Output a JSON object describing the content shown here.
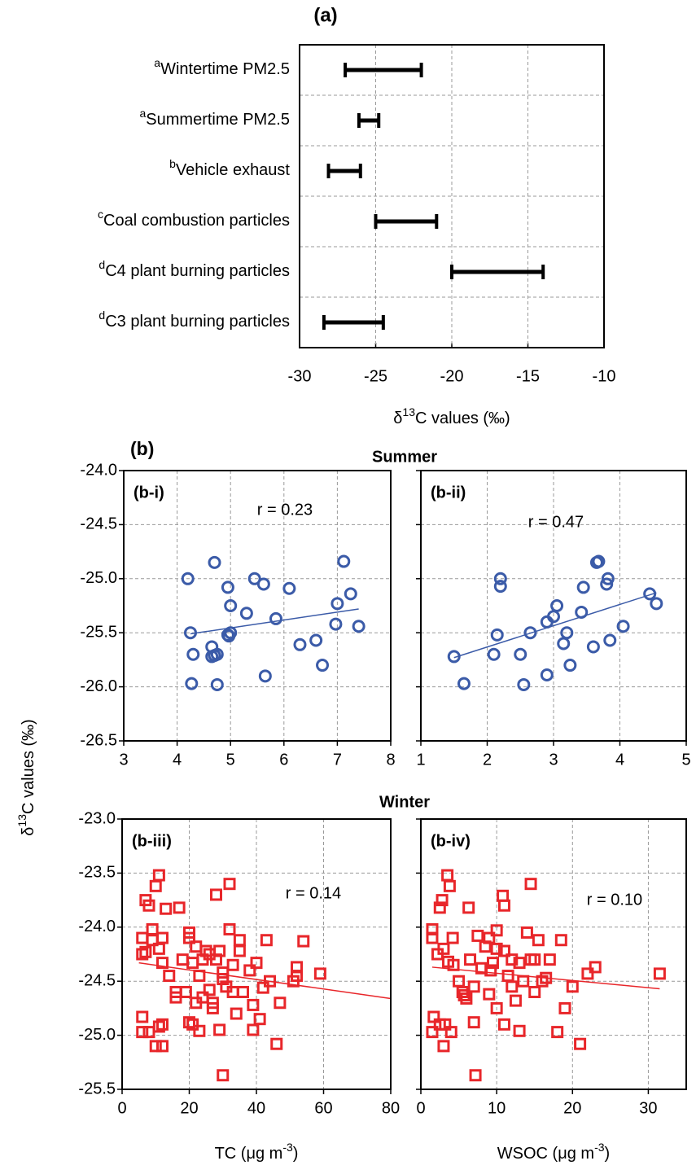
{
  "figure": {
    "label": "(b)",
    "summer": "Summer",
    "winter": "Winter",
    "ylabel": [
      "δ",
      "13",
      "C values (‰)"
    ]
  },
  "chart_data": [
    {
      "type": "range",
      "title": "(a)",
      "categories": [
        "Wintertime PM2.5",
        "Summertime PM2.5",
        "Vehicle exhaust",
        "Coal combustion particles",
        "C4 plant burning particles",
        "C3 plant burning particles"
      ],
      "category_notes": [
        "a",
        "a",
        "b",
        "c",
        "d",
        "d"
      ],
      "low": [
        -27.0,
        -26.1,
        -28.1,
        -25.0,
        -20.0,
        -28.4
      ],
      "high": [
        -22.0,
        -24.8,
        -26.0,
        -21.0,
        -14.0,
        -24.5
      ],
      "color": "#000000",
      "xlim": [
        -30,
        -10
      ],
      "xticks": [
        -30,
        -25,
        -20,
        -15,
        -10
      ],
      "grid": true,
      "xlabel": [
        "δ",
        "13",
        "C values (‰)"
      ]
    },
    {
      "type": "scatter",
      "title": "(b-i)",
      "annotation": "r = 0.23",
      "color": "#3b5ba8",
      "marker": "circle",
      "grid": true,
      "xlim": [
        3,
        8
      ],
      "xticks": [
        3,
        4,
        5,
        6,
        7,
        8
      ],
      "ylim": [
        -26.5,
        -24
      ],
      "yticks": [
        -26.5,
        {
          "value": -26,
          "label": "-26.0"
        },
        -25.5,
        {
          "value": -25,
          "label": "-25.0"
        },
        -24.5,
        {
          "value": -24,
          "label": "-24.0"
        }
      ],
      "x": [
        4.2,
        4.25,
        4.3,
        4.27,
        4.7,
        4.65,
        4.65,
        4.7,
        4.75,
        4.75,
        4.95,
        4.95,
        5.0,
        5.0,
        4.97,
        5.3,
        5.45,
        5.62,
        5.65,
        5.85,
        6.1,
        6.3,
        6.6,
        6.72,
        6.97,
        7.0,
        7.12,
        7.25,
        7.4
      ],
      "values": [
        -25.0,
        -25.5,
        -25.7,
        -25.97,
        -24.85,
        -25.63,
        -25.72,
        -25.71,
        -25.7,
        -25.98,
        -25.08,
        -25.52,
        -25.25,
        -25.5,
        -25.53,
        -25.32,
        -25.0,
        -25.05,
        -25.9,
        -25.37,
        -25.09,
        -25.61,
        -25.57,
        -25.8,
        -25.42,
        -25.23,
        -24.84,
        -25.14,
        -25.44
      ],
      "fit": {
        "x": [
          4.25,
          7.4
        ],
        "y": [
          -25.51,
          -25.28
        ]
      }
    },
    {
      "type": "scatter",
      "title": "(b-ii)",
      "annotation": "r = 0.47",
      "color": "#3b5ba8",
      "marker": "circle",
      "grid": true,
      "ytick_labels": false,
      "xlim": [
        1,
        5
      ],
      "xticks": [
        1,
        2,
        3,
        4,
        5
      ],
      "ylim": [
        -26.5,
        -24
      ],
      "yticks": [
        -26.5,
        -26,
        -25.5,
        -25,
        -24.5,
        -24
      ],
      "x": [
        1.5,
        1.65,
        2.1,
        2.15,
        2.2,
        2.2,
        2.5,
        2.55,
        2.65,
        2.9,
        2.9,
        3.0,
        3.05,
        3.15,
        3.2,
        3.25,
        3.42,
        3.45,
        3.6,
        3.65,
        3.68,
        3.8,
        3.82,
        3.85,
        4.05,
        4.45,
        4.55
      ],
      "values": [
        -25.72,
        -25.97,
        -25.7,
        -25.52,
        -25.0,
        -25.07,
        -25.7,
        -25.98,
        -25.5,
        -25.89,
        -25.4,
        -25.35,
        -25.25,
        -25.6,
        -25.5,
        -25.8,
        -25.31,
        -25.08,
        -25.63,
        -24.85,
        -24.84,
        -25.05,
        -25.0,
        -25.57,
        -25.44,
        -25.14,
        -25.23
      ],
      "fit": {
        "x": [
          1.5,
          4.55
        ],
        "y": [
          -25.73,
          -25.13
        ]
      }
    },
    {
      "type": "scatter",
      "title": "(b-iii)",
      "annotation": "r = 0.14",
      "color": "#e8262a",
      "marker": "square",
      "grid": true,
      "xlim": [
        0,
        80
      ],
      "xticks": [
        0,
        20,
        40,
        60,
        80
      ],
      "ylim": [
        -25.5,
        -23
      ],
      "yticks": [
        -25.5,
        {
          "value": -25,
          "label": "-25.0"
        },
        -24.5,
        {
          "value": -24,
          "label": "-24.0"
        },
        -23.5,
        {
          "value": -23,
          "label": "-23.0"
        }
      ],
      "xlabel": [
        "TC (μg m",
        "-3",
        ")"
      ],
      "x": [
        6,
        6,
        6,
        6,
        7,
        7,
        8,
        8,
        9,
        9,
        10,
        10,
        11,
        11,
        11,
        12,
        12,
        12,
        12,
        13,
        14,
        16,
        16,
        17,
        18,
        19,
        20,
        20,
        20,
        21,
        21,
        22,
        22,
        23,
        23,
        24,
        24,
        25,
        26,
        26,
        27,
        27,
        28,
        28,
        29,
        29,
        30,
        30,
        30,
        31,
        32,
        32,
        33,
        33,
        34,
        35,
        35,
        36,
        38,
        39,
        39,
        40,
        41,
        42,
        43,
        44,
        46,
        47,
        51,
        52,
        52,
        54,
        59
      ],
      "values": [
        -24.1,
        -24.25,
        -24.83,
        -24.97,
        -23.75,
        -24.23,
        -23.8,
        -24.97,
        -24.02,
        -24.12,
        -23.62,
        -25.1,
        -23.52,
        -24.2,
        -24.92,
        -24.1,
        -24.33,
        -24.9,
        -25.1,
        -23.83,
        -24.45,
        -24.65,
        -24.6,
        -23.82,
        -24.3,
        -24.6,
        -24.05,
        -24.1,
        -24.88,
        -24.33,
        -24.9,
        -24.18,
        -24.7,
        -24.45,
        -24.96,
        -24.3,
        -24.65,
        -24.22,
        -24.25,
        -24.58,
        -24.75,
        -24.7,
        -23.7,
        -24.3,
        -24.22,
        -24.95,
        -24.42,
        -24.48,
        -25.37,
        -24.55,
        -23.6,
        -24.02,
        -24.35,
        -24.6,
        -24.8,
        -24.12,
        -24.22,
        -24.6,
        -24.4,
        -24.95,
        -24.72,
        -24.33,
        -24.85,
        -24.56,
        -24.12,
        -24.5,
        -25.08,
        -24.7,
        -24.5,
        -24.37,
        -24.45,
        -24.13,
        -24.43
      ],
      "fit": {
        "x": [
          5,
          80
        ],
        "y": [
          -24.33,
          -24.66
        ]
      }
    },
    {
      "type": "scatter",
      "title": "(b-iv)",
      "annotation": "r = 0.10",
      "color": "#e8262a",
      "marker": "square",
      "grid": true,
      "ytick_labels": false,
      "xlim": [
        0,
        35
      ],
      "xticks": [
        0,
        10,
        20,
        30
      ],
      "ylim": [
        -25.5,
        -23
      ],
      "yticks": [
        -25.5,
        -25,
        -24.5,
        -24,
        -23.5,
        -23
      ],
      "xlabel": [
        "WSOC (μg m",
        "-3",
        ")"
      ],
      "x": [
        1.5,
        1.5,
        1.7,
        1.5,
        2.2,
        2.5,
        2.8,
        2.5,
        3,
        3,
        3.2,
        3.5,
        3.6,
        3.8,
        4,
        4.2,
        4.3,
        5,
        5.5,
        5.7,
        6,
        6.3,
        6.5,
        7,
        7,
        7.2,
        7.5,
        8,
        8.5,
        9,
        9,
        9.2,
        9.5,
        10,
        10,
        10,
        10.8,
        11,
        11,
        11,
        11.5,
        12,
        12,
        12.5,
        13,
        13,
        13.5,
        14,
        14.5,
        14.5,
        15,
        15,
        15.5,
        16,
        16.5,
        17,
        18,
        18.5,
        19,
        20,
        21,
        22,
        23,
        31.5
      ],
      "values": [
        -24.02,
        -24.1,
        -24.83,
        -24.97,
        -24.25,
        -23.82,
        -23.75,
        -24.9,
        -25.1,
        -24.2,
        -24.9,
        -23.52,
        -24.32,
        -23.62,
        -24.97,
        -24.1,
        -24.35,
        -24.5,
        -24.6,
        -24.63,
        -24.66,
        -23.82,
        -24.3,
        -24.88,
        -24.55,
        -25.37,
        -24.08,
        -24.38,
        -24.18,
        -24.1,
        -24.62,
        -24.4,
        -24.33,
        -24.03,
        -24.2,
        -24.75,
        -23.71,
        -24.22,
        -23.8,
        -24.9,
        -24.45,
        -24.3,
        -24.55,
        -24.68,
        -24.33,
        -24.96,
        -24.5,
        -24.05,
        -23.6,
        -24.3,
        -24.6,
        -24.3,
        -24.12,
        -24.5,
        -24.47,
        -24.3,
        -24.97,
        -24.12,
        -24.75,
        -24.55,
        -25.08,
        -24.43,
        -24.37,
        -24.43
      ],
      "fit": {
        "x": [
          1.5,
          31.5
        ],
        "y": [
          -24.37,
          -24.57
        ]
      }
    }
  ]
}
